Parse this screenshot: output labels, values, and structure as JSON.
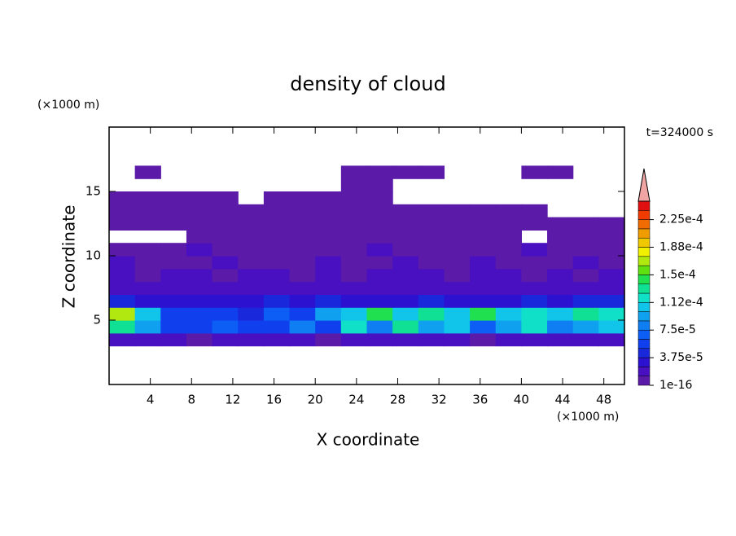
{
  "chart_data": {
    "type": "contour",
    "title": "density of cloud",
    "time_label": "t=324000 s",
    "x_label": "X coordinate",
    "y_label": "Z coordinate",
    "x_unit": "(×1000 m)",
    "y_unit": "(×1000 m)",
    "xlim": [
      0,
      50
    ],
    "ylim": [
      0,
      20
    ],
    "xticks": [
      4,
      8,
      12,
      16,
      20,
      24,
      28,
      32,
      36,
      40,
      44,
      48
    ],
    "yticks": [
      5,
      10,
      15
    ],
    "x": [
      1.25,
      3.75,
      6.25,
      8.75,
      11.25,
      13.75,
      16.25,
      18.75,
      21.25,
      23.75,
      26.25,
      28.75,
      31.25,
      33.75,
      36.25,
      38.75,
      41.25,
      43.75,
      46.25,
      48.75
    ],
    "y": [
      3.5,
      4.5,
      5.5,
      6.5,
      7.5,
      8.5,
      9.5,
      10.5,
      11.5,
      12.5,
      13.5,
      14.5,
      15.5,
      16.5
    ],
    "values": [
      [
        1.5e-05,
        2e-05,
        1.5e-05,
        1e-05,
        2e-05,
        1.5e-05,
        2e-05,
        1.5e-05,
        1e-05,
        2e-05,
        1.5e-05,
        2e-05,
        1.5e-05,
        2e-05,
        1e-05,
        1.5e-05,
        2e-05,
        1.5e-05,
        2e-05,
        1.5e-05
      ],
      [
        0.00013,
        9e-05,
        6e-05,
        5e-05,
        7e-05,
        5e-05,
        6e-05,
        8e-05,
        6e-05,
        0.00012,
        8e-05,
        0.00013,
        9e-05,
        0.00011,
        7e-05,
        9e-05,
        0.00012,
        8e-05,
        9e-05,
        0.00011
      ],
      [
        0.00017,
        0.0001,
        6e-05,
        5e-05,
        6e-05,
        4e-05,
        7e-05,
        5e-05,
        9e-05,
        0.00011,
        0.00014,
        0.00011,
        0.00013,
        0.0001,
        0.00014,
        0.00011,
        0.00012,
        0.00011,
        0.00013,
        0.00012
      ],
      [
        4e-05,
        3e-05,
        2.5e-05,
        3e-05,
        2.5e-05,
        3e-05,
        4e-05,
        3e-05,
        4.5e-05,
        3e-05,
        3.5e-05,
        3e-05,
        4e-05,
        3e-05,
        3.5e-05,
        3e-05,
        4e-05,
        3e-05,
        4.5e-05,
        4e-05
      ],
      [
        2.2e-05,
        1.5e-05,
        1.8e-05,
        2.2e-05,
        1.5e-05,
        2e-05,
        1.8e-05,
        1.5e-05,
        2.2e-05,
        1.5e-05,
        1.8e-05,
        2.2e-05,
        2e-05,
        1.5e-05,
        2.2e-05,
        1.8e-05,
        1.5e-05,
        2e-05,
        1.8e-05,
        2.2e-05
      ],
      [
        1.3e-05,
        1e-05,
        1.4e-05,
        1.3e-05,
        1e-05,
        1.3e-05,
        1.4e-05,
        1e-05,
        1.3e-05,
        1e-05,
        1.4e-05,
        1.3e-05,
        1.4e-05,
        1e-05,
        1.3e-05,
        1.4e-05,
        1e-05,
        1.3e-05,
        1e-05,
        1.3e-05
      ],
      [
        1.3e-05,
        8e-06,
        5e-06,
        8e-06,
        1.3e-05,
        8e-06,
        5e-06,
        8e-06,
        1.3e-05,
        8e-06,
        5e-06,
        1.3e-05,
        8e-06,
        5e-06,
        1.3e-05,
        8e-06,
        5e-06,
        8e-06,
        1.3e-05,
        8e-06
      ],
      [
        5e-06,
        5e-06,
        5e-06,
        1.3e-05,
        5e-06,
        5e-06,
        5e-06,
        5e-06,
        5e-06,
        5e-06,
        1.3e-05,
        5e-06,
        5e-06,
        5e-06,
        5e-06,
        5e-06,
        1.3e-05,
        5e-06,
        5e-06,
        5e-06
      ],
      [
        null,
        null,
        null,
        5e-06,
        5e-06,
        5e-06,
        5e-06,
        5e-06,
        5e-06,
        5e-06,
        5e-06,
        5e-06,
        5e-06,
        5e-06,
        5e-06,
        5e-06,
        null,
        5e-06,
        5e-06,
        5e-06
      ],
      [
        5e-06,
        5e-06,
        5e-06,
        5e-06,
        5e-06,
        5e-06,
        5e-06,
        5e-06,
        5e-06,
        5e-06,
        5e-06,
        5e-06,
        5e-06,
        5e-06,
        5e-06,
        5e-06,
        5e-06,
        5e-06,
        5e-06,
        5e-06
      ],
      [
        5e-06,
        5e-06,
        5e-06,
        5e-06,
        5e-06,
        5e-06,
        5e-06,
        5e-06,
        5e-06,
        5e-06,
        5e-06,
        5e-06,
        5e-06,
        5e-06,
        5e-06,
        5e-06,
        5e-06,
        null,
        null,
        null
      ],
      [
        5e-06,
        5e-06,
        5e-06,
        5e-06,
        5e-06,
        null,
        5e-06,
        5e-06,
        5e-06,
        5e-06,
        5e-06,
        null,
        null,
        null,
        null,
        null,
        null,
        null,
        null,
        null
      ],
      [
        null,
        null,
        null,
        null,
        null,
        null,
        null,
        null,
        null,
        5e-06,
        5e-06,
        null,
        null,
        null,
        null,
        null,
        null,
        null,
        null,
        null
      ],
      [
        null,
        5e-06,
        null,
        null,
        null,
        null,
        null,
        null,
        null,
        5e-06,
        5e-06,
        5e-06,
        5e-06,
        null,
        null,
        null,
        5e-06,
        5e-06,
        null,
        null
      ]
    ],
    "levels": [
      1e-16,
      1.25e-05,
      2.5e-05,
      3.75e-05,
      5e-05,
      6.25e-05,
      7.5e-05,
      8.75e-05,
      0.0001,
      0.0001125,
      0.000125,
      0.0001375,
      0.00015,
      0.0001625,
      0.000175,
      0.0001875,
      0.0002,
      0.0002125,
      0.000225,
      0.0002375,
      0.00025
    ],
    "colors": [
      "#5c1aa8",
      "#4810c0",
      "#2c12d0",
      "#1a28dc",
      "#1040ee",
      "#0c5ef4",
      "#0e7ef2",
      "#10a0f0",
      "#10c4ea",
      "#10e0c8",
      "#10e094",
      "#20e050",
      "#60e010",
      "#b0e810",
      "#f0f000",
      "#f0c800",
      "#f09c00",
      "#f06c00",
      "#f03c00",
      "#e01010"
    ],
    "extend_color": "#f0a4a4",
    "colorbar_ticks": [
      {
        "value": 1e-16,
        "label": "1e-16"
      },
      {
        "value": 3.75e-05,
        "label": "3.75e-5"
      },
      {
        "value": 7.5e-05,
        "label": "7.5e-5"
      },
      {
        "value": 0.0001125,
        "label": "1.12e-4"
      },
      {
        "value": 0.00015,
        "label": "1.5e-4"
      },
      {
        "value": 0.0001875,
        "label": "1.88e-4"
      },
      {
        "value": 0.000225,
        "label": "2.25e-4"
      }
    ]
  }
}
